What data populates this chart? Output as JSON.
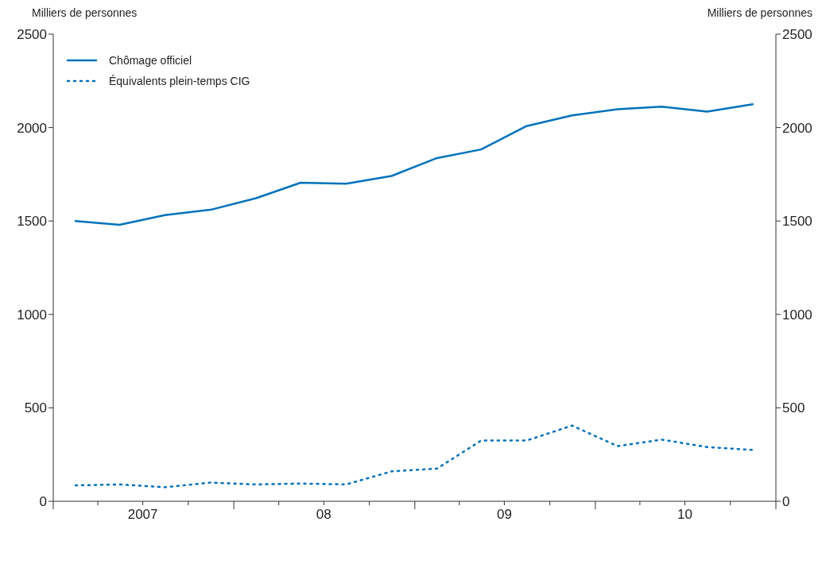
{
  "chart_data": {
    "type": "line",
    "ylabel": "Milliers de personnes",
    "y2label": "Milliers de personnes",
    "x": [
      "2007-02-15",
      "2007-05-15",
      "2007-08-15",
      "2007-11-15",
      "2008-02-15",
      "2008-05-15",
      "2008-08-15",
      "2008-11-15",
      "2009-02-15",
      "2009-05-15",
      "2009-08-15",
      "2009-11-15",
      "2010-02-15",
      "2010-05-15",
      "2010-08-15",
      "2010-11-15"
    ],
    "series": [
      {
        "name": "Chômage officiel",
        "color": "#0072bb",
        "line_style": "solid",
        "values": [
          1500,
          1480,
          1532,
          1560,
          1622,
          1705,
          1700,
          1741,
          1837,
          1883,
          2008,
          2065,
          2098,
          2112,
          2085,
          2125
        ]
      },
      {
        "name": "Équivalents plein-temps CIG",
        "color": "#0072bb",
        "line_style": "dotted",
        "values": [
          85,
          90,
          75,
          100,
          90,
          95,
          90,
          160,
          175,
          325,
          325,
          405,
          295,
          330,
          290,
          275
        ]
      }
    ],
    "xlim": [
      "2007-01-01",
      "2011-01-01"
    ],
    "xticks": [
      {
        "value": "2007-01-01",
        "label": null
      },
      {
        "value": "2007-04-01",
        "label": null
      },
      {
        "value": "2007-07-01",
        "label": "2007"
      },
      {
        "value": "2007-10-01",
        "label": null
      },
      {
        "value": "2008-01-01",
        "label": null
      },
      {
        "value": "2008-04-01",
        "label": null
      },
      {
        "value": "2008-07-01",
        "label": "08"
      },
      {
        "value": "2008-10-01",
        "label": null
      },
      {
        "value": "2009-01-01",
        "label": null
      },
      {
        "value": "2009-04-01",
        "label": null
      },
      {
        "value": "2009-07-01",
        "label": "09"
      },
      {
        "value": "2009-10-01",
        "label": null
      },
      {
        "value": "2010-01-01",
        "label": null
      },
      {
        "value": "2010-04-01",
        "label": null
      },
      {
        "value": "2010-07-01",
        "label": "10"
      },
      {
        "value": "2010-10-01",
        "label": null
      },
      {
        "value": "2011-01-01",
        "label": null
      }
    ],
    "ylim": [
      0,
      2500
    ],
    "yticks": [
      0,
      500,
      1000,
      1500,
      2000,
      2500
    ],
    "y2lim": [
      0,
      2500
    ],
    "y2ticks": [
      0,
      500,
      1000,
      1500,
      2000,
      2500
    ],
    "legend": "top left",
    "marker": "none",
    "grid": false
  }
}
